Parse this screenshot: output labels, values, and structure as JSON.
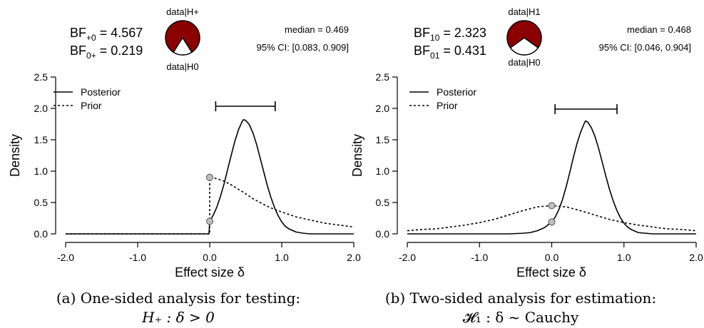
{
  "chart_data": [
    {
      "type": "line",
      "bf": {
        "top_label": "BF",
        "top_sub": "+0",
        "top_value": " = 4.567",
        "bottom_label": "BF",
        "bottom_sub": "0+",
        "bottom_value": " = 0.219"
      },
      "pie": {
        "top_label": "data|H+",
        "bottom_label": "data|H0",
        "alt_fraction": 0.8207,
        "alt_color": "#8b0000",
        "null_color": "#ffffff"
      },
      "summary": {
        "median": "median = 0.469",
        "ci": "95% CI: [0.083, 0.909]"
      },
      "ci_interval": [
        0.083,
        0.909
      ],
      "xlabel": "Effect size δ",
      "ylabel": "Density",
      "xlim": [
        -2.0,
        2.0
      ],
      "ylim": [
        0.0,
        2.5
      ],
      "x_ticks": [
        "-2.0",
        "-1.0",
        "0.0",
        "1.0",
        "2.0"
      ],
      "y_ticks": [
        "0.0",
        "0.5",
        "1.0",
        "1.5",
        "2.0",
        "2.5"
      ],
      "legend": {
        "position": "top-left",
        "entries": [
          "Posterior",
          "Prior"
        ]
      },
      "series": [
        {
          "name": "Posterior",
          "style": "solid",
          "x": [
            -2.0,
            -0.01,
            0.0,
            0.05,
            0.1,
            0.15,
            0.2,
            0.25,
            0.3,
            0.35,
            0.4,
            0.45,
            0.469,
            0.5,
            0.55,
            0.6,
            0.65,
            0.7,
            0.75,
            0.8,
            0.85,
            0.9,
            0.95,
            1.0,
            1.05,
            1.1,
            1.2,
            1.3,
            1.4,
            1.6,
            2.0
          ],
          "y": [
            0.0,
            0.0,
            0.2,
            0.3,
            0.43,
            0.6,
            0.8,
            1.03,
            1.26,
            1.48,
            1.66,
            1.79,
            1.82,
            1.81,
            1.74,
            1.61,
            1.43,
            1.21,
            0.99,
            0.77,
            0.58,
            0.42,
            0.29,
            0.19,
            0.12,
            0.08,
            0.03,
            0.01,
            0.0,
            0.0,
            0.0
          ]
        },
        {
          "name": "Prior",
          "style": "dashed",
          "x": [
            -2.0,
            -0.01,
            0.0,
            0.0,
            0.1,
            0.2,
            0.3,
            0.4,
            0.5,
            0.6,
            0.7,
            0.8,
            0.9,
            1.0,
            1.2,
            1.4,
            1.6,
            1.8,
            2.0
          ],
          "y": [
            0.0,
            0.0,
            0.0,
            0.9,
            0.88,
            0.84,
            0.78,
            0.71,
            0.64,
            0.56,
            0.5,
            0.44,
            0.39,
            0.35,
            0.27,
            0.22,
            0.17,
            0.14,
            0.11
          ]
        }
      ],
      "points": [
        {
          "x": 0.0,
          "y": 0.9,
          "color": "#bfbfbf"
        },
        {
          "x": 0.0,
          "y": 0.2,
          "color": "#bfbfbf"
        }
      ],
      "caption_line1": "(a) One-sided analysis for testing:",
      "caption_line2": "H₊ : δ > 0"
    },
    {
      "type": "line",
      "bf": {
        "top_label": "BF",
        "top_sub": "10",
        "top_value": " = 2.323",
        "bottom_label": "BF",
        "bottom_sub": "01",
        "bottom_value": " = 0.431"
      },
      "pie": {
        "top_label": "data|H1",
        "bottom_label": "data|H0",
        "alt_fraction": 0.6991,
        "alt_color": "#8b0000",
        "null_color": "#ffffff"
      },
      "summary": {
        "median": "median = 0.468",
        "ci": "95% CI: [0.046, 0.904]"
      },
      "ci_interval": [
        0.046,
        0.904
      ],
      "xlabel": "Effect size δ",
      "ylabel": "Density",
      "xlim": [
        -2.0,
        2.0
      ],
      "ylim": [
        0.0,
        2.5
      ],
      "x_ticks": [
        "-2.0",
        "-1.0",
        "0.0",
        "1.0",
        "2.0"
      ],
      "y_ticks": [
        "0.0",
        "0.5",
        "1.0",
        "1.5",
        "2.0",
        "2.5"
      ],
      "legend": {
        "position": "top-left",
        "entries": [
          "Posterior",
          "Prior"
        ]
      },
      "series": [
        {
          "name": "Posterior",
          "style": "solid",
          "x": [
            -2.0,
            -0.6,
            -0.4,
            -0.3,
            -0.2,
            -0.1,
            0.0,
            0.05,
            0.1,
            0.15,
            0.2,
            0.25,
            0.3,
            0.35,
            0.4,
            0.45,
            0.468,
            0.5,
            0.55,
            0.6,
            0.65,
            0.7,
            0.75,
            0.8,
            0.85,
            0.9,
            0.95,
            1.0,
            1.05,
            1.1,
            1.2,
            1.3,
            1.4,
            1.6,
            2.0
          ],
          "y": [
            0.0,
            0.0,
            0.01,
            0.02,
            0.05,
            0.1,
            0.19,
            0.27,
            0.39,
            0.55,
            0.75,
            0.98,
            1.22,
            1.44,
            1.62,
            1.76,
            1.8,
            1.78,
            1.69,
            1.55,
            1.36,
            1.14,
            0.92,
            0.71,
            0.53,
            0.38,
            0.26,
            0.17,
            0.11,
            0.07,
            0.02,
            0.01,
            0.0,
            0.0,
            0.0
          ]
        },
        {
          "name": "Prior",
          "style": "dashed",
          "x": [
            -2.0,
            -1.8,
            -1.6,
            -1.4,
            -1.2,
            -1.0,
            -0.8,
            -0.6,
            -0.4,
            -0.2,
            0.0,
            0.2,
            0.4,
            0.6,
            0.8,
            1.0,
            1.2,
            1.4,
            1.6,
            1.8,
            2.0
          ],
          "y": [
            0.05,
            0.07,
            0.08,
            0.11,
            0.14,
            0.18,
            0.23,
            0.3,
            0.37,
            0.43,
            0.45,
            0.43,
            0.37,
            0.3,
            0.23,
            0.18,
            0.14,
            0.11,
            0.08,
            0.07,
            0.05
          ]
        }
      ],
      "points": [
        {
          "x": 0.0,
          "y": 0.45,
          "color": "#bfbfbf"
        },
        {
          "x": 0.0,
          "y": 0.19,
          "color": "#bfbfbf"
        }
      ],
      "caption_line1": "(b) Two-sided analysis for estimation:",
      "caption_line2": "𝓗₁ : δ ~ Cauchy"
    }
  ]
}
